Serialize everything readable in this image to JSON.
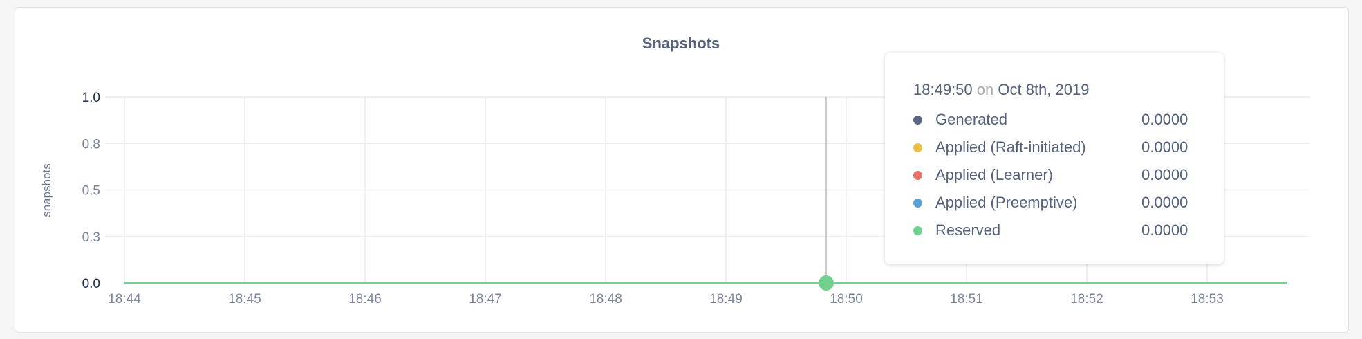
{
  "chart_data": {
    "type": "line",
    "title": "Snapshots",
    "ylabel": "snapshots",
    "xlabel": "",
    "ylim": [
      0,
      1
    ],
    "yticks": [
      "0.0",
      "0.3",
      "0.5",
      "0.8",
      "1.0"
    ],
    "ytick_values": [
      0,
      0.25,
      0.5,
      0.75,
      1.0
    ],
    "xticks": [
      "18:44",
      "18:45",
      "18:46",
      "18:47",
      "18:48",
      "18:49",
      "18:50",
      "18:51",
      "18:52",
      "18:53"
    ],
    "xlim": [
      "18:44",
      "18:53:40"
    ],
    "grid": true,
    "series": [
      {
        "name": "Generated",
        "color": "#5b6680",
        "x": [
          "18:44",
          "18:53:40"
        ],
        "values": [
          0,
          0
        ]
      },
      {
        "name": "Applied (Raft-initiated)",
        "color": "#ebc046",
        "x": [
          "18:44",
          "18:53:40"
        ],
        "values": [
          0,
          0
        ]
      },
      {
        "name": "Applied (Learner)",
        "color": "#e5716b",
        "x": [
          "18:44",
          "18:53:40"
        ],
        "values": [
          0,
          0
        ]
      },
      {
        "name": "Applied (Preemptive)",
        "color": "#5c9fd4",
        "x": [
          "18:44",
          "18:53:40"
        ],
        "values": [
          0,
          0
        ]
      },
      {
        "name": "Reserved",
        "color": "#72d191",
        "x": [
          "18:44",
          "18:53:40"
        ],
        "values": [
          0,
          0
        ]
      }
    ],
    "hover": {
      "x": "18:49:50"
    }
  },
  "tooltip": {
    "time": "18:49:50",
    "on": "on",
    "date": "Oct 8th, 2019",
    "rows": [
      {
        "name": "Generated",
        "value": "0.0000",
        "color": "#5b6680"
      },
      {
        "name": "Applied (Raft-initiated)",
        "value": "0.0000",
        "color": "#ebc046"
      },
      {
        "name": "Applied (Learner)",
        "value": "0.0000",
        "color": "#e5716b"
      },
      {
        "name": "Applied (Preemptive)",
        "value": "0.0000",
        "color": "#5c9fd4"
      },
      {
        "name": "Reserved",
        "value": "0.0000",
        "color": "#72d191"
      }
    ]
  }
}
